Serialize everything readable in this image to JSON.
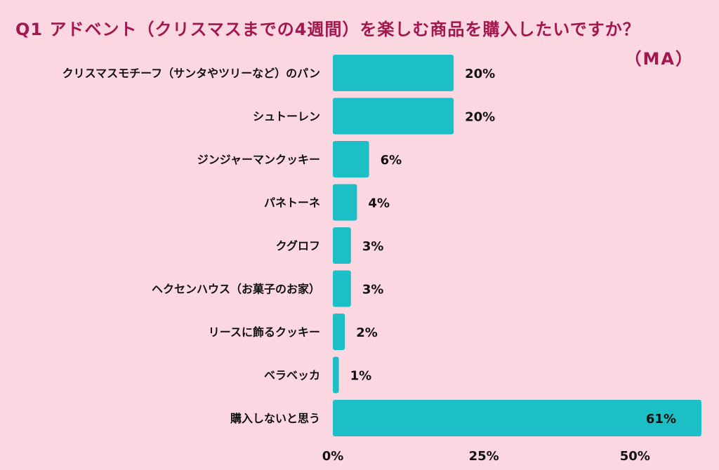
{
  "title": "Q1 アドベント（クリスマスまでの4週間）を楽しむ商品を購入したいですか？",
  "subtitle": "（MA）",
  "colors": {
    "background": "#fbd7e2",
    "bar": "#1cbfc6",
    "title": "#a3174f",
    "text": "#111111"
  },
  "chart_data": {
    "type": "bar",
    "orientation": "horizontal",
    "categories": [
      "クリスマスモチーフ（サンタやツリーなど）のパン",
      "シュトーレン",
      "ジンジャーマンクッキー",
      "パネトーネ",
      "クグロフ",
      "ヘクセンハウス（お菓子のお家）",
      "リースに飾るクッキー",
      "ベラベッカ",
      "購入しないと思う"
    ],
    "values": [
      20,
      20,
      6,
      4,
      3,
      3,
      2,
      1,
      61
    ],
    "value_labels": [
      "20%",
      "20%",
      "6%",
      "4%",
      "3%",
      "3%",
      "2%",
      "1%",
      "61%"
    ],
    "xlim": [
      0,
      61
    ],
    "xticks": [
      0,
      25,
      50
    ],
    "xtick_labels": [
      "0%",
      "25%",
      "50%"
    ],
    "grid": false,
    "legend": "none"
  }
}
